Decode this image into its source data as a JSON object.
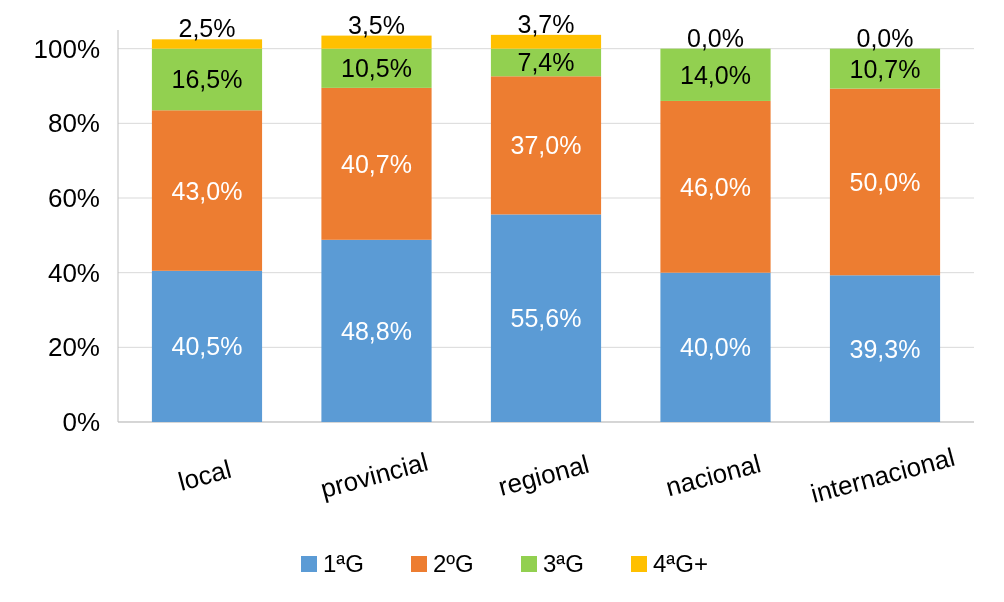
{
  "chart_data": {
    "type": "bar",
    "stacked": true,
    "categories": [
      "local",
      "provincial",
      "regional",
      "nacional",
      "internacional"
    ],
    "series": [
      {
        "name": "1ªG",
        "color": "#5b9bd5",
        "values": [
          40.5,
          48.8,
          55.6,
          40.0,
          39.3
        ],
        "value_labels": [
          "40,5%",
          "48,8%",
          "55,6%",
          "40,0%",
          "39,3%"
        ]
      },
      {
        "name": "2ºG",
        "color": "#ed7d31",
        "values": [
          43.0,
          40.7,
          37.0,
          46.0,
          50.0
        ],
        "value_labels": [
          "43,0%",
          "40,7%",
          "37,0%",
          "46,0%",
          "50,0%"
        ]
      },
      {
        "name": "3ªG",
        "color": "#92d050",
        "values": [
          16.5,
          10.5,
          7.4,
          14.0,
          10.7
        ],
        "value_labels": [
          "16,5%",
          "10,5%",
          "7,4%",
          "14,0%",
          "10,7%"
        ]
      },
      {
        "name": "4ªG+",
        "color": "#ffc000",
        "values": [
          2.5,
          3.5,
          3.7,
          0.0,
          0.0
        ],
        "value_labels": [
          "2,5%",
          "3,5%",
          "3,7%",
          "0,0%",
          "0,0%"
        ]
      }
    ],
    "ylim": [
      0,
      105
    ],
    "yticks": [
      {
        "value": 0,
        "label": "0%"
      },
      {
        "value": 20,
        "label": "20%"
      },
      {
        "value": 40,
        "label": "40%"
      },
      {
        "value": 60,
        "label": "60%"
      },
      {
        "value": 80,
        "label": "80%"
      },
      {
        "value": 100,
        "label": "100%"
      }
    ],
    "grid": "y",
    "legend": "bottom"
  }
}
